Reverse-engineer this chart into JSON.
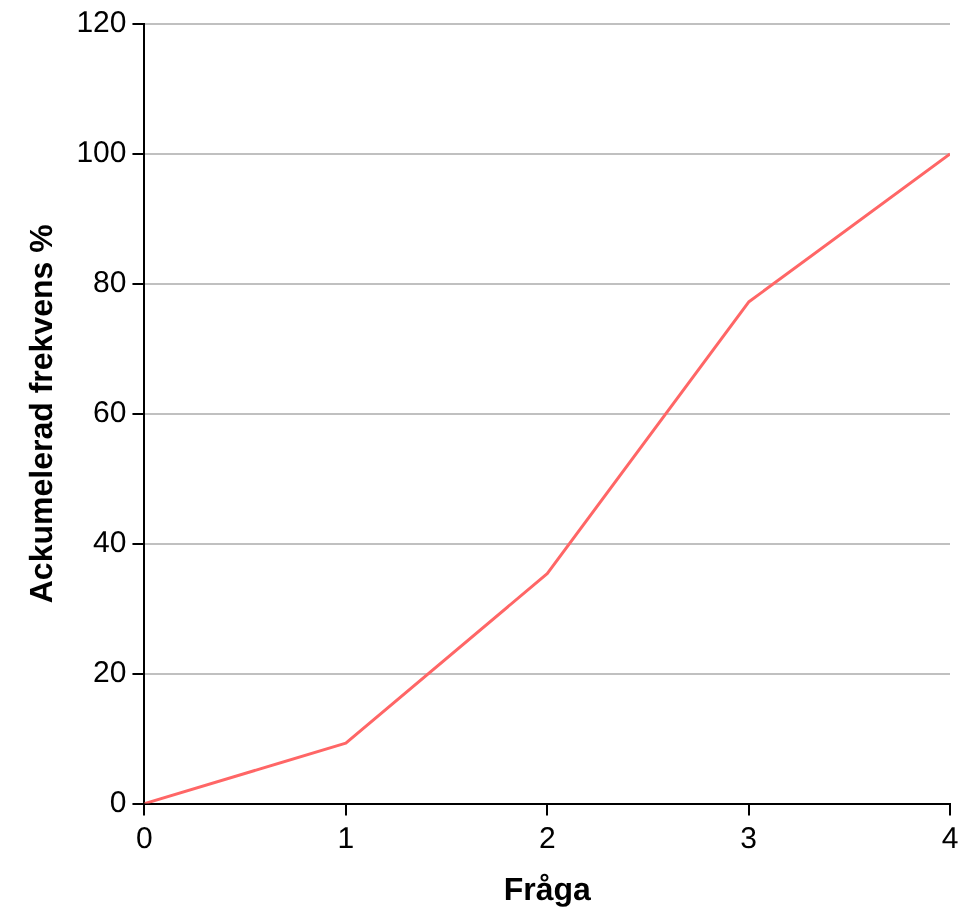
{
  "chart_data": {
    "type": "line",
    "xlabel": "Fråga",
    "ylabel": "Ackumelerad frekvens %",
    "x": [
      0,
      1,
      2,
      3,
      4
    ],
    "series": [
      {
        "color": "#ff6666",
        "values": [
          0,
          9.3,
          35.4,
          77.2,
          100
        ]
      }
    ],
    "xlim": [
      0,
      4
    ],
    "xticks": [
      0,
      1,
      2,
      3,
      4
    ],
    "ylim": [
      0,
      120
    ],
    "yticks": [
      0,
      20,
      40,
      60,
      80,
      100,
      120
    ],
    "grid": "y",
    "legend": false,
    "marker": "none",
    "line_style": "solid"
  }
}
